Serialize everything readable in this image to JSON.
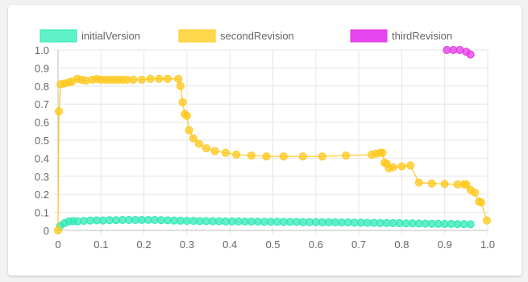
{
  "chart_data": {
    "type": "scatter",
    "title": "",
    "xlabel": "",
    "ylabel": "",
    "xlim": [
      0,
      1.0
    ],
    "ylim": [
      0,
      1.0
    ],
    "grid": true,
    "legend_position": "top",
    "x_ticks": [
      "0",
      "0.1",
      "0.2",
      "0.3",
      "0.4",
      "0.5",
      "0.6",
      "0.7",
      "0.8",
      "0.9",
      "1.0"
    ],
    "y_ticks": [
      "0",
      "0.1",
      "0.2",
      "0.3",
      "0.4",
      "0.5",
      "0.6",
      "0.7",
      "0.8",
      "0.9",
      "1.0"
    ],
    "series": [
      {
        "name": "initialVersion",
        "color": "#2ee8b6",
        "fill": "rgba(46,232,182,0.75)",
        "legend_fill": "#5ff2c9",
        "show_line": false,
        "points": [
          [
            0.005,
            0.025
          ],
          [
            0.015,
            0.04
          ],
          [
            0.025,
            0.05
          ],
          [
            0.035,
            0.052
          ],
          [
            0.045,
            0.05
          ],
          [
            0.06,
            0.053
          ],
          [
            0.075,
            0.055
          ],
          [
            0.09,
            0.056
          ],
          [
            0.105,
            0.055
          ],
          [
            0.12,
            0.057
          ],
          [
            0.135,
            0.057
          ],
          [
            0.15,
            0.058
          ],
          [
            0.165,
            0.058
          ],
          [
            0.18,
            0.058
          ],
          [
            0.195,
            0.058
          ],
          [
            0.21,
            0.058
          ],
          [
            0.225,
            0.058
          ],
          [
            0.24,
            0.057
          ],
          [
            0.255,
            0.056
          ],
          [
            0.27,
            0.055
          ],
          [
            0.285,
            0.054
          ],
          [
            0.3,
            0.053
          ],
          [
            0.315,
            0.053
          ],
          [
            0.33,
            0.052
          ],
          [
            0.345,
            0.052
          ],
          [
            0.36,
            0.051
          ],
          [
            0.375,
            0.051
          ],
          [
            0.39,
            0.05
          ],
          [
            0.405,
            0.05
          ],
          [
            0.42,
            0.05
          ],
          [
            0.435,
            0.049
          ],
          [
            0.45,
            0.049
          ],
          [
            0.465,
            0.049
          ],
          [
            0.48,
            0.048
          ],
          [
            0.495,
            0.048
          ],
          [
            0.51,
            0.048
          ],
          [
            0.525,
            0.047
          ],
          [
            0.54,
            0.047
          ],
          [
            0.555,
            0.047
          ],
          [
            0.57,
            0.046
          ],
          [
            0.585,
            0.046
          ],
          [
            0.6,
            0.046
          ],
          [
            0.615,
            0.045
          ],
          [
            0.63,
            0.045
          ],
          [
            0.645,
            0.045
          ],
          [
            0.66,
            0.044
          ],
          [
            0.675,
            0.044
          ],
          [
            0.69,
            0.043
          ],
          [
            0.705,
            0.043
          ],
          [
            0.72,
            0.042
          ],
          [
            0.735,
            0.042
          ],
          [
            0.75,
            0.041
          ],
          [
            0.765,
            0.041
          ],
          [
            0.78,
            0.04
          ],
          [
            0.795,
            0.04
          ],
          [
            0.81,
            0.039
          ],
          [
            0.825,
            0.039
          ],
          [
            0.84,
            0.038
          ],
          [
            0.855,
            0.038
          ],
          [
            0.87,
            0.037
          ],
          [
            0.885,
            0.037
          ],
          [
            0.9,
            0.036
          ],
          [
            0.915,
            0.036
          ],
          [
            0.93,
            0.035
          ],
          [
            0.945,
            0.035
          ],
          [
            0.96,
            0.034
          ]
        ]
      },
      {
        "name": "secondRevision",
        "color": "#ffc81f",
        "fill": "rgba(255,200,31,0.75)",
        "legend_fill": "#ffd84d",
        "show_line": true,
        "points": [
          [
            0,
            0
          ],
          [
            0.002,
            0.66
          ],
          [
            0.006,
            0.81
          ],
          [
            0.015,
            0.815
          ],
          [
            0.025,
            0.82
          ],
          [
            0.032,
            0.825
          ],
          [
            0.045,
            0.84
          ],
          [
            0.055,
            0.835
          ],
          [
            0.065,
            0.83
          ],
          [
            0.08,
            0.835
          ],
          [
            0.09,
            0.84
          ],
          [
            0.1,
            0.835
          ],
          [
            0.11,
            0.835
          ],
          [
            0.12,
            0.835
          ],
          [
            0.13,
            0.835
          ],
          [
            0.14,
            0.835
          ],
          [
            0.15,
            0.835
          ],
          [
            0.16,
            0.835
          ],
          [
            0.175,
            0.835
          ],
          [
            0.195,
            0.835
          ],
          [
            0.215,
            0.84
          ],
          [
            0.235,
            0.84
          ],
          [
            0.255,
            0.84
          ],
          [
            0.28,
            0.84
          ],
          [
            0.285,
            0.8
          ],
          [
            0.29,
            0.71
          ],
          [
            0.295,
            0.645
          ],
          [
            0.3,
            0.635
          ],
          [
            0.305,
            0.555
          ],
          [
            0.315,
            0.51
          ],
          [
            0.328,
            0.48
          ],
          [
            0.345,
            0.455
          ],
          [
            0.365,
            0.44
          ],
          [
            0.39,
            0.43
          ],
          [
            0.415,
            0.42
          ],
          [
            0.45,
            0.415
          ],
          [
            0.485,
            0.41
          ],
          [
            0.525,
            0.41
          ],
          [
            0.57,
            0.41
          ],
          [
            0.615,
            0.41
          ],
          [
            0.67,
            0.415
          ],
          [
            0.73,
            0.42
          ],
          [
            0.74,
            0.425
          ],
          [
            0.75,
            0.43
          ],
          [
            0.755,
            0.43
          ],
          [
            0.76,
            0.375
          ],
          [
            0.765,
            0.37
          ],
          [
            0.77,
            0.345
          ],
          [
            0.78,
            0.35
          ],
          [
            0.8,
            0.355
          ],
          [
            0.82,
            0.36
          ],
          [
            0.84,
            0.265
          ],
          [
            0.87,
            0.26
          ],
          [
            0.9,
            0.258
          ],
          [
            0.93,
            0.255
          ],
          [
            0.945,
            0.255
          ],
          [
            0.95,
            0.255
          ],
          [
            0.96,
            0.225
          ],
          [
            0.97,
            0.21
          ],
          [
            0.98,
            0.16
          ],
          [
            0.985,
            0.155
          ],
          [
            0.998,
            0.055
          ]
        ]
      },
      {
        "name": "thirdRevision",
        "color": "#e535e5",
        "fill": "rgba(229,53,229,0.75)",
        "legend_fill": "#e545f0",
        "show_line": false,
        "points": [
          [
            0.905,
            1.0
          ],
          [
            0.92,
            1.0
          ],
          [
            0.935,
            1.0
          ],
          [
            0.95,
            0.99
          ],
          [
            0.96,
            0.975
          ]
        ]
      }
    ]
  }
}
